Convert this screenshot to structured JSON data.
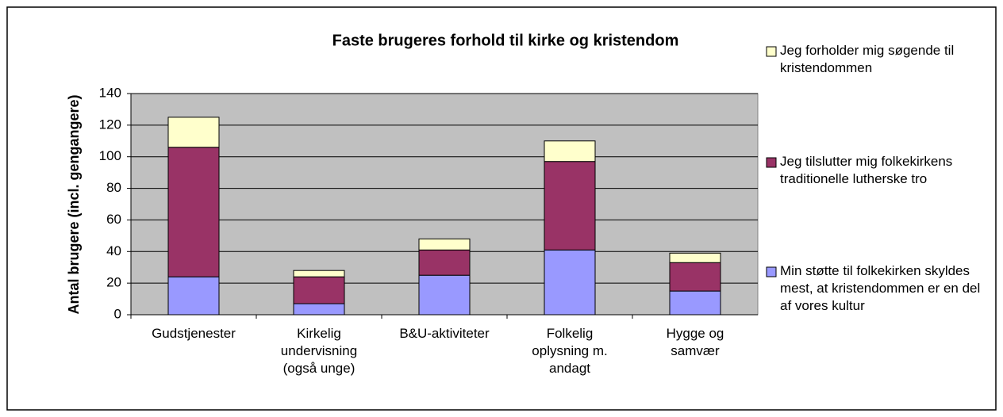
{
  "chart_data": {
    "type": "stacked_bar",
    "title": "Faste brugeres forhold til kirke og kristendom",
    "y_label": "Antal brugere (incl. gengangere)",
    "categories": [
      "Gudstjenester",
      "Kirkelig undervisning (også unge)",
      "B&U-aktiviteter",
      "Folkelig oplysning m. andagt",
      "Hygge og samvær"
    ],
    "series": [
      {
        "name": "Min støtte til folkekirken skyldes mest, at kristendommen er en del af vores kultur",
        "color": "#9999ff",
        "values": [
          24,
          7,
          25,
          41,
          15
        ]
      },
      {
        "name": "Jeg tilslutter mig folkekirkens traditionelle lutherske tro",
        "color": "#993366",
        "values": [
          82,
          17,
          16,
          56,
          18
        ]
      },
      {
        "name": "Jeg forholder mig søgende til kristendommen",
        "color": "#ffffcc",
        "values": [
          19,
          4,
          7,
          13,
          6
        ]
      }
    ],
    "ylim": [
      0,
      140
    ],
    "yticks": [
      0,
      20,
      40,
      60,
      80,
      100,
      120,
      140
    ],
    "grid": true,
    "plot_background": "#c0c0c0",
    "legend": "right"
  }
}
